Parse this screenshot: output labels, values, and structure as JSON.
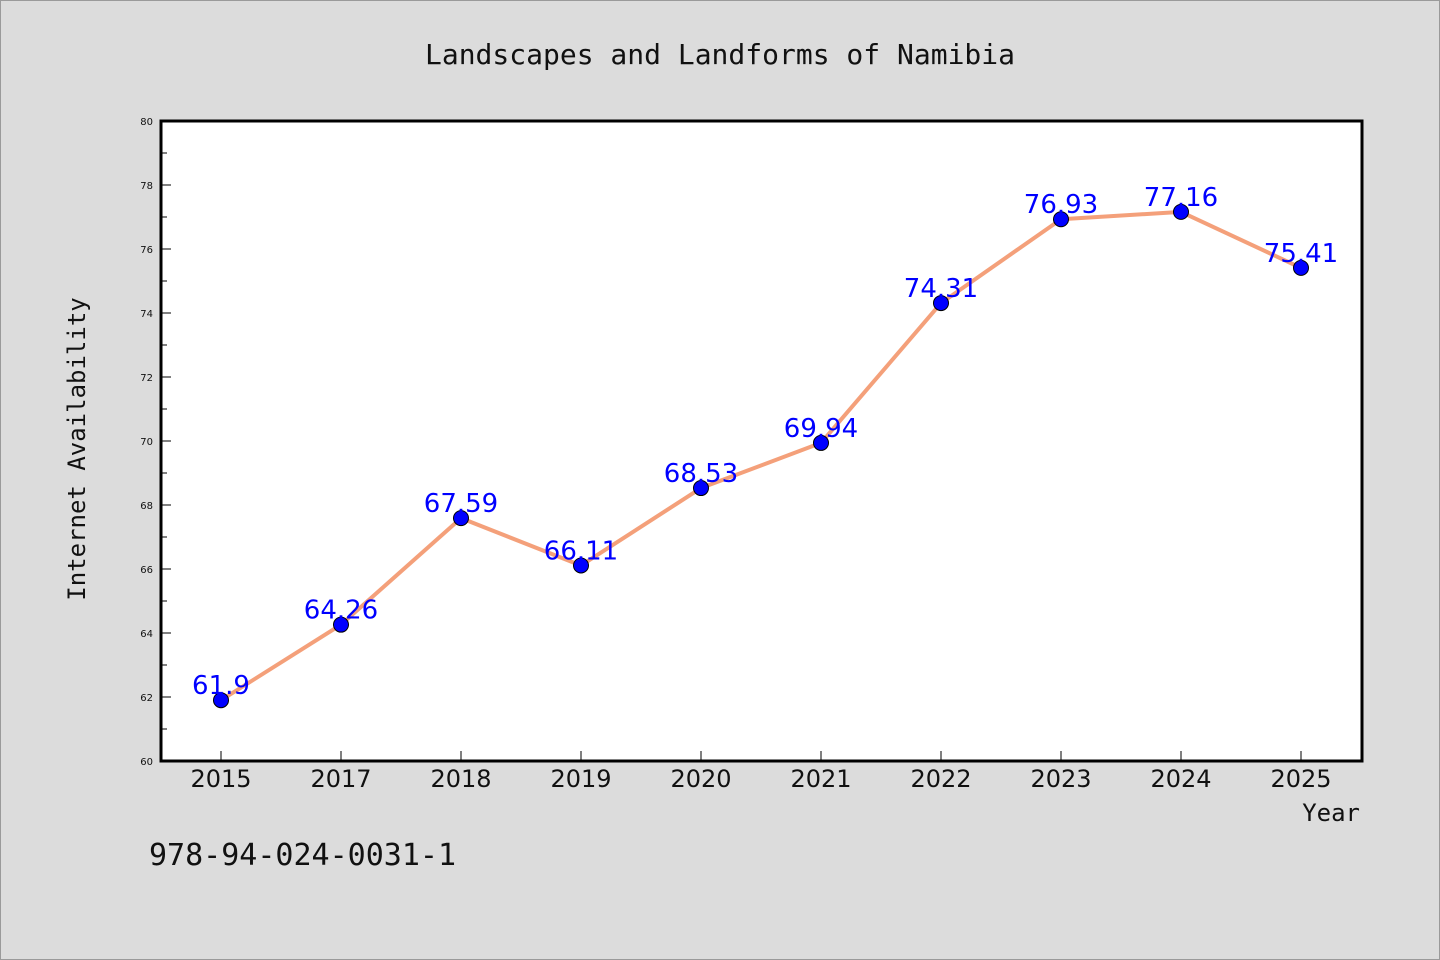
{
  "chart_data": {
    "type": "line",
    "title": "Landscapes and Landforms of Namibia",
    "xlabel": "Year",
    "ylabel": "Internet Availability",
    "categories": [
      "2015",
      "2017",
      "2018",
      "2019",
      "2020",
      "2021",
      "2022",
      "2023",
      "2024",
      "2025"
    ],
    "series": [
      {
        "values": [
          61.9,
          64.26,
          67.59,
          66.11,
          68.53,
          69.94,
          74.31,
          76.93,
          77.16,
          75.41
        ],
        "data_labels": [
          "61.9",
          "64.26",
          "67.59",
          "66.11",
          "68.53",
          "69.94",
          "74.31",
          "76.93",
          "77.16",
          "75.41"
        ],
        "line_color": "#f4a07a",
        "marker_color": "#0000ff"
      }
    ],
    "ylim": [
      60,
      80
    ],
    "yticks": [
      60,
      62,
      64,
      66,
      68,
      70,
      72,
      74,
      76,
      78,
      80
    ],
    "grid": false,
    "legend": "none"
  },
  "isbn": "978-94-024-0031-1",
  "colors": {
    "background": "#dcdcdc",
    "plot_area": "#ffffff",
    "data_label": "#0000ff"
  }
}
